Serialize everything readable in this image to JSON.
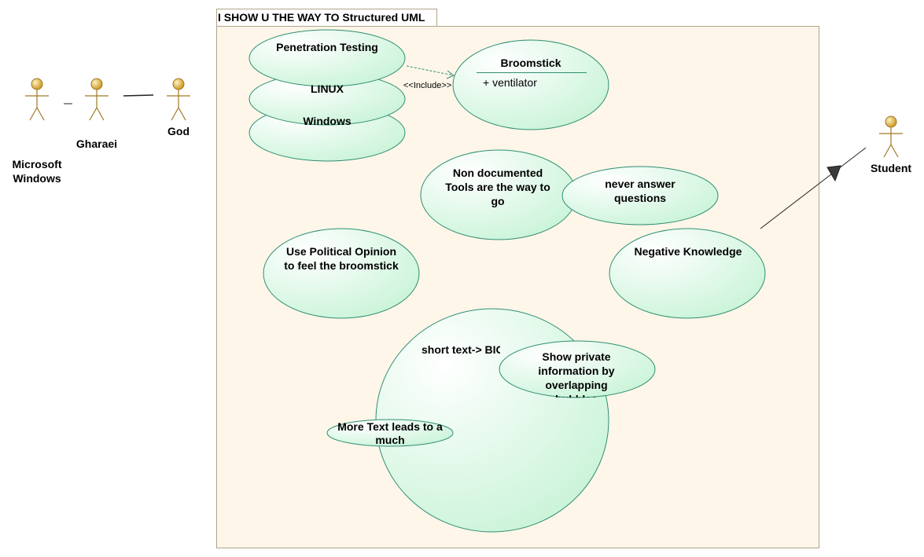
{
  "diagram": {
    "system_title": "I SHOW U THE WAY TO Structured UML",
    "colors": {
      "boundary_fill": "#fdf6e9",
      "boundary_stroke": "#b0a58a",
      "usecase_stroke": "#2f8f72",
      "usecase_fill_light": "#ffffff",
      "usecase_fill_dark": "#c6f3d6",
      "actor_fill": "#d9a520",
      "actor_line": "#a07a25"
    },
    "actors": {
      "microsoft_windows": "Microsoft Windows",
      "gharaei": "Gharaei",
      "god": "God",
      "student": "Student"
    },
    "use_cases": {
      "windows": "Windows",
      "linux": "LINUX",
      "penetration_testing": "Penetration Testing",
      "broomstick": "Broomstick",
      "broomstick_attribute": "+ ventilator",
      "non_documented_tools": "Non documented Tools are the way to go",
      "never_answer": "never answer questions",
      "political_opinion": "Use Political Opinion to feel the broomstick",
      "negative_knowledge": "Negative Knowledge",
      "big_bubble": "short text-> BIG BUBBLE",
      "show_private": "Show private information by overlapping bubbles",
      "more_text": "More Text leads to a much"
    },
    "relations": {
      "include_label": "<<Include>>"
    }
  }
}
